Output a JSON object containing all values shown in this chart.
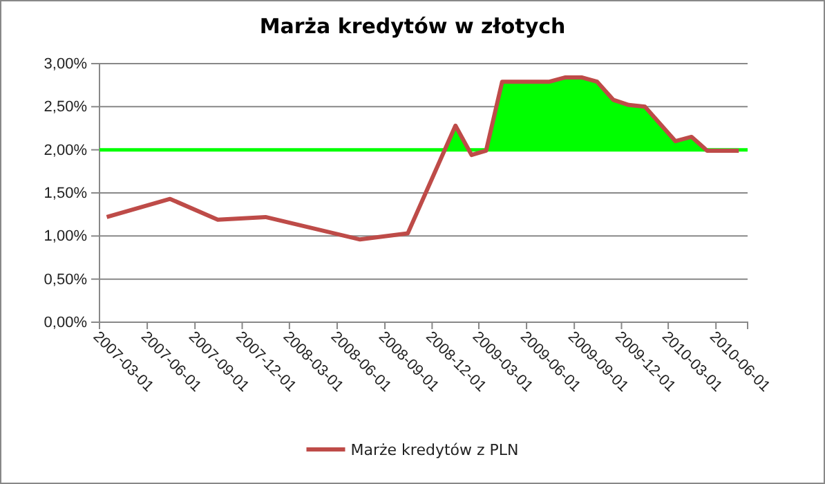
{
  "chart_data": {
    "type": "line",
    "title": "Marża kredytów w złotych",
    "x": [
      "2007-03-15",
      "2007-07-15",
      "2007-10-15",
      "2008-01-15",
      "2008-07-15",
      "2008-10-15",
      "2009-01-15",
      "2009-02-15",
      "2009-03-15",
      "2009-04-15",
      "2009-07-15",
      "2009-08-15",
      "2009-09-15",
      "2009-10-15",
      "2009-11-15",
      "2009-12-15",
      "2010-01-15",
      "2010-03-15",
      "2010-04-15",
      "2010-05-15",
      "2010-07-15"
    ],
    "series": [
      {
        "name": "Marże kredytów z PLN",
        "color": "#be4b48",
        "values": [
          1.22,
          1.43,
          1.19,
          1.22,
          0.96,
          1.03,
          2.28,
          1.94,
          1.99,
          2.79,
          2.79,
          2.84,
          2.84,
          2.79,
          2.58,
          2.52,
          2.5,
          2.1,
          2.15,
          1.99,
          1.99
        ]
      }
    ],
    "xlim": [
      "2007-03-01",
      "2010-08-01"
    ],
    "xticks": [
      {
        "value": "2007-03-01",
        "label": "2007-03-01"
      },
      {
        "value": "2007-06-01",
        "label": "2007-06-01"
      },
      {
        "value": "2007-09-01",
        "label": "2007-09-01"
      },
      {
        "value": "2007-12-01",
        "label": "2007-12-01"
      },
      {
        "value": "2008-03-01",
        "label": "2008-03-01"
      },
      {
        "value": "2008-06-01",
        "label": "2008-06-01"
      },
      {
        "value": "2008-09-01",
        "label": "2008-09-01"
      },
      {
        "value": "2008-12-01",
        "label": "2008-12-01"
      },
      {
        "value": "2009-03-01",
        "label": "2009-03-01"
      },
      {
        "value": "2009-06-01",
        "label": "2009-06-01"
      },
      {
        "value": "2009-09-01",
        "label": "2009-09-01"
      },
      {
        "value": "2009-12-01",
        "label": "2009-12-01"
      },
      {
        "value": "2010-03-01",
        "label": "2010-03-01"
      },
      {
        "value": "2010-06-01",
        "label": "2010-06-01"
      }
    ],
    "ylim": [
      0,
      3
    ],
    "yticks": [
      {
        "value": 0,
        "label": "0,00%"
      },
      {
        "value": 0.5,
        "label": "0,50%"
      },
      {
        "value": 1,
        "label": "1,00%"
      },
      {
        "value": 1.5,
        "label": "1,50%"
      },
      {
        "value": 2,
        "label": "2,00%"
      },
      {
        "value": 2.5,
        "label": "2,50%"
      },
      {
        "value": 3,
        "label": "3,00%"
      }
    ],
    "ref_lines": [
      {
        "axis": "y",
        "value": 2,
        "color": "#00ff00"
      }
    ],
    "grid": "y",
    "legend": "bottom",
    "marker": "none",
    "line_style": "solid"
  }
}
